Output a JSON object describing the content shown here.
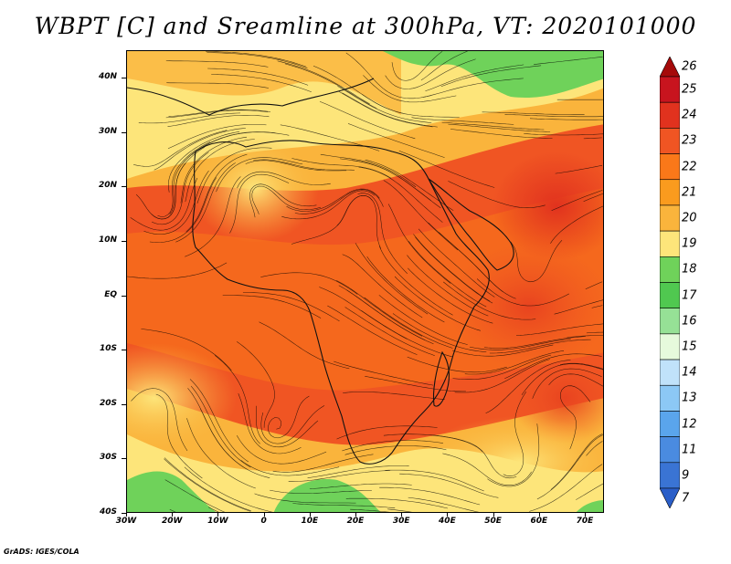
{
  "title": "WBPT [C] and Sreamline at 300hPa, VT: 2020101000",
  "footer": "GrADS: IGES/COLA",
  "lat_labels": [
    "40N",
    "30N",
    "20N",
    "10N",
    "EQ",
    "10S",
    "20S",
    "30S",
    "40S"
  ],
  "lon_labels": [
    "30W",
    "20W",
    "10W",
    "0",
    "10E",
    "20E",
    "30E",
    "40E",
    "50E",
    "60E",
    "70E"
  ],
  "colorbar": {
    "labels": [
      "26",
      "25",
      "24",
      "23",
      "22",
      "21",
      "20",
      "19",
      "18",
      "17",
      "16",
      "15",
      "14",
      "13",
      "12",
      "11",
      "9",
      "7"
    ],
    "colors": [
      "#a50a0a",
      "#c8141e",
      "#e1321e",
      "#f05523",
      "#fa7819",
      "#fa9b1e",
      "#fab43c",
      "#fde57a",
      "#6fd25a",
      "#50c850",
      "#96e196",
      "#e6fadc",
      "#c0e2fa",
      "#8cc8f5",
      "#5aa5ec",
      "#4a8be0",
      "#3a74d4",
      "#2a5ec8"
    ]
  },
  "map": {
    "field": "WBPT",
    "level": "300hPa",
    "streamlines": true
  }
}
